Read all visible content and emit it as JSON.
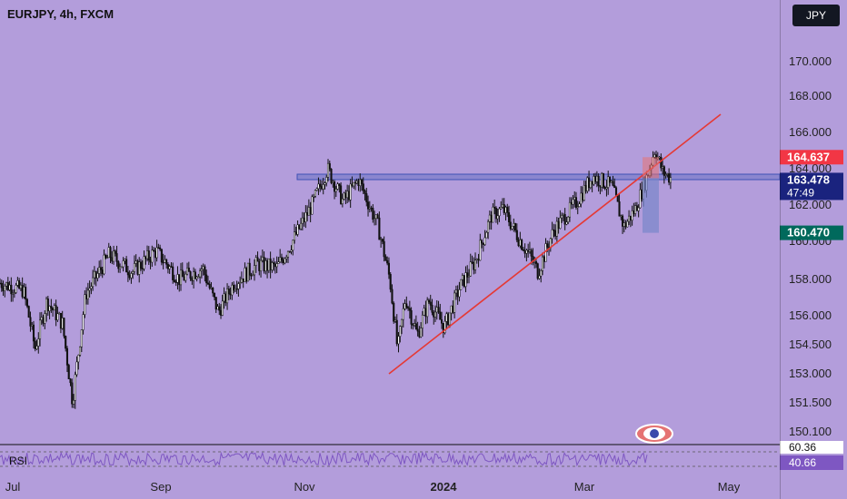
{
  "header": {
    "title": "EURJPY, 4h, FXCM",
    "currency_label": "JPY"
  },
  "colors": {
    "background": "#b39ddb",
    "candle": "#111111",
    "trendline": "#e53935",
    "zone": "#5c6bc0",
    "stop_box": "#e57373",
    "target_box": "#7986cb",
    "last_price": "#1a237e",
    "stop_price": "#f23645",
    "target_price": "#00695c",
    "rsi_line": "#7e57c2"
  },
  "chart_data": {
    "type": "candlestick",
    "title": "EURJPY, 4h, FXCM",
    "x_tick_labels": [
      "Jul",
      "Sep",
      "Nov",
      "2024",
      "Mar",
      "May"
    ],
    "y_tick_labels": [
      "170.000",
      "168.000",
      "166.000",
      "164.000",
      "162.000",
      "160.000",
      "158.000",
      "156.000",
      "154.500",
      "153.000",
      "151.500",
      "150.100"
    ],
    "y_ticks": [
      170.0,
      168.0,
      166.0,
      164.0,
      162.0,
      160.0,
      158.0,
      156.0,
      154.5,
      153.0,
      151.5,
      150.1
    ],
    "price_path": [
      {
        "t": 0.0,
        "p": 157.8
      },
      {
        "t": 0.03,
        "p": 157.4
      },
      {
        "t": 0.045,
        "p": 154.3
      },
      {
        "t": 0.06,
        "p": 156.8
      },
      {
        "t": 0.08,
        "p": 155.6
      },
      {
        "t": 0.093,
        "p": 151.6
      },
      {
        "t": 0.11,
        "p": 157.2
      },
      {
        "t": 0.14,
        "p": 159.3
      },
      {
        "t": 0.17,
        "p": 158.4
      },
      {
        "t": 0.2,
        "p": 159.5
      },
      {
        "t": 0.23,
        "p": 158.0
      },
      {
        "t": 0.26,
        "p": 158.6
      },
      {
        "t": 0.28,
        "p": 156.2
      },
      {
        "t": 0.3,
        "p": 157.8
      },
      {
        "t": 0.33,
        "p": 158.8
      },
      {
        "t": 0.355,
        "p": 158.6
      },
      {
        "t": 0.375,
        "p": 160.0
      },
      {
        "t": 0.4,
        "p": 162.0
      },
      {
        "t": 0.42,
        "p": 164.0
      },
      {
        "t": 0.44,
        "p": 162.2
      },
      {
        "t": 0.46,
        "p": 163.4
      },
      {
        "t": 0.485,
        "p": 160.8
      },
      {
        "t": 0.5,
        "p": 158.0
      },
      {
        "t": 0.51,
        "p": 154.2
      },
      {
        "t": 0.52,
        "p": 157.0
      },
      {
        "t": 0.535,
        "p": 155.0
      },
      {
        "t": 0.55,
        "p": 156.8
      },
      {
        "t": 0.57,
        "p": 155.4
      },
      {
        "t": 0.59,
        "p": 157.6
      },
      {
        "t": 0.61,
        "p": 159.0
      },
      {
        "t": 0.63,
        "p": 161.4
      },
      {
        "t": 0.645,
        "p": 161.8
      },
      {
        "t": 0.665,
        "p": 160.2
      },
      {
        "t": 0.68,
        "p": 159.2
      },
      {
        "t": 0.69,
        "p": 158.4
      },
      {
        "t": 0.71,
        "p": 160.6
      },
      {
        "t": 0.74,
        "p": 162.2
      },
      {
        "t": 0.76,
        "p": 163.6
      },
      {
        "t": 0.785,
        "p": 163.0
      },
      {
        "t": 0.8,
        "p": 160.8
      },
      {
        "t": 0.815,
        "p": 161.8
      },
      {
        "t": 0.83,
        "p": 163.6
      },
      {
        "t": 0.84,
        "p": 165.1
      },
      {
        "t": 0.85,
        "p": 163.8
      },
      {
        "t": 0.86,
        "p": 163.5
      }
    ],
    "resistance_zone": {
      "low": 163.4,
      "high": 163.7
    },
    "trendline": {
      "start_price": 153.0,
      "end_price": 167.0
    },
    "last_price": {
      "label": "163.478",
      "countdown": "47:49",
      "value": 163.478
    },
    "stop_price": {
      "label": "164.637",
      "value": 164.637
    },
    "target_price": {
      "label": "160.470",
      "value": 160.47
    },
    "rsi": {
      "label": "RSI",
      "value_labels": [
        "60.36",
        "40.66"
      ],
      "values": [
        60.36,
        40.66
      ]
    }
  }
}
